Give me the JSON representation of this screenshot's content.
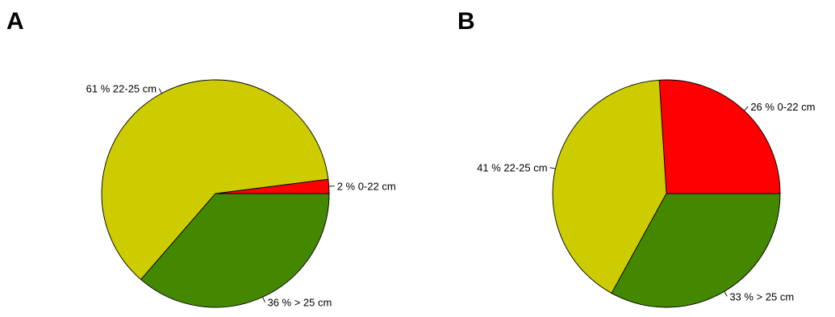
{
  "chart_data": [
    {
      "type": "pie",
      "panel": "A",
      "slices": [
        {
          "percent_label": "2 %",
          "category": "0-22 cm",
          "value": 2,
          "color": "#ff0000"
        },
        {
          "percent_label": "61 %",
          "category": "22-25 cm",
          "value": 61,
          "color": "#cccc00"
        },
        {
          "percent_label": "36 %",
          "category": "> 25 cm",
          "value": 36,
          "color": "#448800"
        }
      ]
    },
    {
      "type": "pie",
      "panel": "B",
      "slices": [
        {
          "percent_label": "26 %",
          "category": "0-22 cm",
          "value": 26,
          "color": "#ff0000"
        },
        {
          "percent_label": "41 %",
          "category": "22-25 cm",
          "value": 41,
          "color": "#cccc00"
        },
        {
          "percent_label": "33 %",
          "category": "> 25 cm",
          "value": 33,
          "color": "#448800"
        }
      ]
    }
  ]
}
